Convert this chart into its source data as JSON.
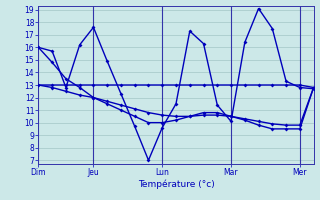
{
  "bg_color": "#cce8e8",
  "grid_color": "#aacccc",
  "line_color": "#0000bb",
  "marker": "D",
  "marker_size": 2,
  "linewidth": 1.0,
  "xlabel": "Température (°c)",
  "ylim": [
    7,
    19
  ],
  "yticks": [
    7,
    8,
    9,
    10,
    11,
    12,
    13,
    14,
    15,
    16,
    17,
    18,
    19
  ],
  "xlim": [
    0,
    20
  ],
  "series": [
    [
      16.0,
      15.7,
      12.8,
      16.2,
      17.6,
      14.9,
      12.3,
      9.7,
      7.0,
      9.6,
      11.5,
      17.3,
      16.3,
      11.4,
      10.1,
      16.4,
      19.1,
      17.5,
      13.3,
      12.8,
      12.7
    ],
    [
      13.0,
      13.0,
      13.0,
      13.0,
      13.0,
      13.0,
      13.0,
      13.0,
      13.0,
      13.0,
      13.0,
      13.0,
      13.0,
      13.0,
      13.0,
      13.0,
      13.0,
      13.0,
      13.0,
      13.0,
      12.8
    ],
    [
      16.0,
      14.8,
      13.5,
      12.8,
      12.0,
      11.5,
      11.0,
      10.5,
      10.0,
      10.0,
      10.2,
      10.5,
      10.8,
      10.8,
      10.5,
      10.2,
      9.8,
      9.5,
      9.5,
      9.5,
      12.8
    ],
    [
      13.0,
      12.8,
      12.5,
      12.2,
      12.0,
      11.7,
      11.4,
      11.1,
      10.8,
      10.6,
      10.5,
      10.5,
      10.6,
      10.6,
      10.5,
      10.3,
      10.1,
      9.9,
      9.8,
      9.8,
      12.8
    ]
  ],
  "x_values": [
    0,
    1,
    2,
    3,
    4,
    5,
    6,
    7,
    8,
    9,
    10,
    11,
    12,
    13,
    14,
    15,
    16,
    17,
    18,
    19,
    20
  ],
  "vlines_x": [
    0,
    4,
    9,
    14,
    19
  ],
  "day_labels": [
    [
      0,
      "Dim"
    ],
    [
      4,
      "Jeu"
    ],
    [
      9,
      "Lun"
    ],
    [
      14,
      "Mar"
    ],
    [
      19,
      "Mer"
    ]
  ],
  "vline_color": "#3333aa"
}
